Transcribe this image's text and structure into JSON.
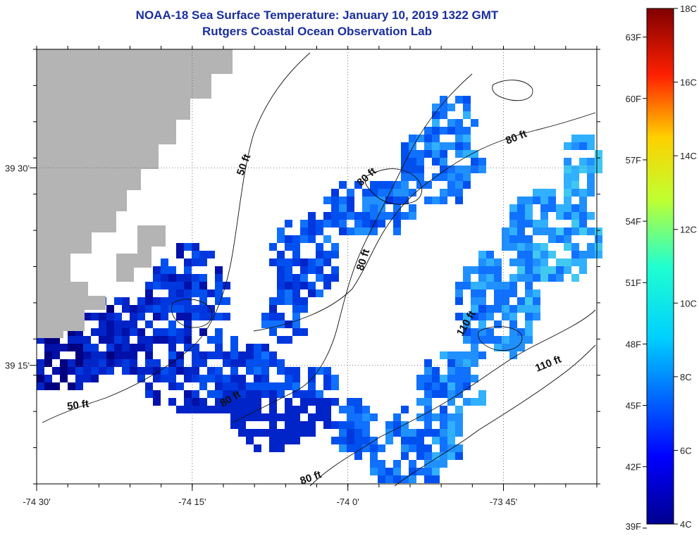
{
  "title": {
    "line1": "NOAA-18 Sea Surface Temperature:  January 10, 2019 1322 GMT",
    "line2": "Rutgers Coastal Ocean Observation Lab"
  },
  "map": {
    "lon_range": [
      -74.5,
      -73.6
    ],
    "lat_range": [
      39.1,
      39.65
    ],
    "lon_ticks": [
      {
        "value": -74.5,
        "label": "-74 30'"
      },
      {
        "value": -74.25,
        "label": "-74 15'"
      },
      {
        "value": -74.0,
        "label": "-74 0'"
      },
      {
        "value": -73.75,
        "label": "-73 45'"
      }
    ],
    "lat_ticks": [
      {
        "value": 39.5,
        "label": "39 30'"
      },
      {
        "value": 39.25,
        "label": "39 15'"
      }
    ],
    "land_color": "#b4b4b4",
    "contour_labels": [
      "50 ft",
      "50 ft",
      "80 ft",
      "80 ft",
      "80 ft",
      "80 ft",
      "80 ft",
      "110 ft",
      "110 ft"
    ]
  },
  "colorbar": {
    "celsius_range": [
      4,
      18
    ],
    "celsius_labels": [
      "18C",
      "16C",
      "14C",
      "12C",
      "10C",
      "8C",
      "6C",
      "4C"
    ],
    "fahrenheit_labels": [
      "63F",
      "60F",
      "57F",
      "54F",
      "51F",
      "48F",
      "45F",
      "42F",
      "39F"
    ]
  }
}
